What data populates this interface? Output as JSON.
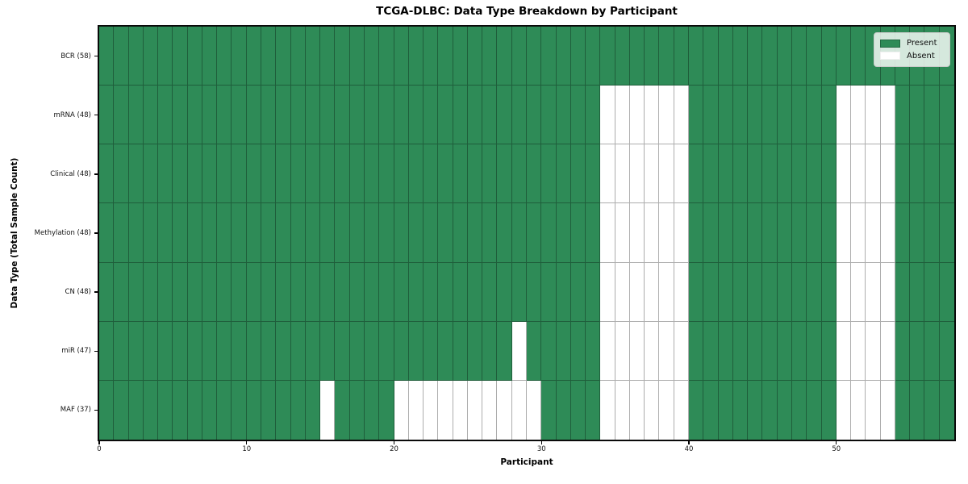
{
  "chart_data": {
    "type": "heatmap",
    "title": "TCGA-DLBC: Data Type Breakdown by Participant",
    "xlabel": "Participant",
    "ylabel": "Data Type (Total Sample Count)",
    "xlim": [
      0,
      58
    ],
    "n_participants": 58,
    "x_ticks": [
      0,
      10,
      20,
      30,
      40,
      50
    ],
    "legend_position": "upper right",
    "legend": [
      {
        "label": "Present",
        "value": "present",
        "color": "#2e8b57"
      },
      {
        "label": "Absent",
        "value": "absent",
        "color": "#ffffff"
      }
    ],
    "rows": [
      {
        "label": "BCR (58)",
        "data_type": "BCR",
        "total": 58,
        "absent_participants": []
      },
      {
        "label": "mRNA (48)",
        "data_type": "mRNA",
        "total": 48,
        "absent_participants": [
          34,
          35,
          36,
          37,
          38,
          39,
          50,
          51,
          52,
          53
        ]
      },
      {
        "label": "Clinical (48)",
        "data_type": "Clinical",
        "total": 48,
        "absent_participants": [
          34,
          35,
          36,
          37,
          38,
          39,
          50,
          51,
          52,
          53
        ]
      },
      {
        "label": "Methylation (48)",
        "data_type": "Methylation",
        "total": 48,
        "absent_participants": [
          34,
          35,
          36,
          37,
          38,
          39,
          50,
          51,
          52,
          53
        ]
      },
      {
        "label": "CN (48)",
        "data_type": "CN",
        "total": 48,
        "absent_participants": [
          34,
          35,
          36,
          37,
          38,
          39,
          50,
          51,
          52,
          53
        ]
      },
      {
        "label": "miR (47)",
        "data_type": "miR",
        "total": 47,
        "absent_participants": [
          28,
          34,
          35,
          36,
          37,
          38,
          39,
          50,
          51,
          52,
          53
        ]
      },
      {
        "label": "MAF (37)",
        "data_type": "MAF",
        "total": 37,
        "absent_participants": [
          15,
          20,
          21,
          22,
          23,
          24,
          25,
          26,
          27,
          28,
          29,
          34,
          35,
          36,
          37,
          38,
          39,
          50,
          51,
          52,
          53
        ]
      }
    ],
    "colors": {
      "present": "#2e8b57",
      "absent": "#ffffff",
      "cell_edge": "rgba(0,0,0,0.32)",
      "spine": "#0a0a0a",
      "legend_bg": "rgba(255,255,255,0.8)"
    }
  }
}
